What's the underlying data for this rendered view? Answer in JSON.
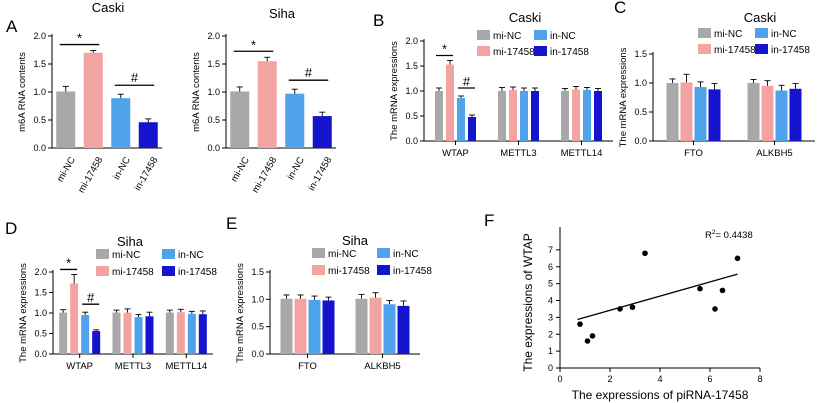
{
  "figure": {
    "series_names": [
      "mi-NC",
      "mi-17458",
      "in-NC",
      "in-17458"
    ]
  },
  "colors": {
    "mi_nc": "#a8a8a8",
    "mi_17458": "#f4a3a3",
    "in_nc": "#4fa3ea",
    "in_17458": "#1414cc"
  },
  "chart_data": [
    {
      "id": "A1",
      "panel_label": "A",
      "type": "bar",
      "title": "Caski",
      "ylabel": "m6A RNA contents",
      "ylim": [
        0,
        2.0
      ],
      "yticks": [
        "0.0",
        "0.5",
        "1.0",
        "1.5",
        "2.0"
      ],
      "categories": [
        "mi-NC",
        "mi-17458",
        "in-NC",
        "in-17458"
      ],
      "values": [
        1.01,
        1.7,
        0.89,
        0.46
      ],
      "errors": [
        0.09,
        0.04,
        0.07,
        0.06
      ],
      "significance": [
        "*",
        "#"
      ]
    },
    {
      "id": "A2",
      "type": "bar",
      "title": "Siha",
      "ylabel": "m6A RNA contents",
      "ylim": [
        0,
        2.0
      ],
      "yticks": [
        "0.0",
        "0.5",
        "1.0",
        "1.5",
        "2.0"
      ],
      "categories": [
        "mi-NC",
        "mi-17458",
        "in-NC",
        "in-17458"
      ],
      "values": [
        1.01,
        1.55,
        0.97,
        0.57
      ],
      "errors": [
        0.08,
        0.07,
        0.08,
        0.07
      ],
      "significance": [
        "*",
        "#"
      ]
    },
    {
      "id": "B",
      "panel_label": "B",
      "type": "bar",
      "title": "Caski",
      "ylabel": "The mRNA expressions",
      "ylim": [
        0,
        2.0
      ],
      "yticks": [
        "0.0",
        "0.5",
        "1.0",
        "1.5",
        "2.0"
      ],
      "categories": [
        "WTAP",
        "METTL3",
        "METTL14"
      ],
      "series": [
        {
          "name": "mi-NC",
          "values": [
            1.0,
            1.0,
            1.0
          ],
          "errors": [
            0.06,
            0.07,
            0.05
          ]
        },
        {
          "name": "mi-17458",
          "values": [
            1.53,
            1.02,
            1.03
          ],
          "errors": [
            0.08,
            0.06,
            0.06
          ]
        },
        {
          "name": "in-NC",
          "values": [
            0.86,
            1.0,
            1.02
          ],
          "errors": [
            0.04,
            0.06,
            0.05
          ]
        },
        {
          "name": "in-17458",
          "values": [
            0.48,
            1.0,
            1.0
          ],
          "errors": [
            0.04,
            0.06,
            0.05
          ]
        }
      ],
      "significance": [
        "*",
        "#"
      ]
    },
    {
      "id": "C",
      "panel_label": "C",
      "type": "bar",
      "title": "Caski",
      "ylabel": "The mRNA expressions",
      "ylim": [
        0,
        1.5
      ],
      "yticks": [
        "0.0",
        "0.5",
        "1.0",
        "1.5"
      ],
      "categories": [
        "FTO",
        "ALKBH5"
      ],
      "series": [
        {
          "name": "mi-NC",
          "values": [
            1.0,
            1.0
          ],
          "errors": [
            0.07,
            0.06
          ]
        },
        {
          "name": "mi-17458",
          "values": [
            1.01,
            0.95
          ],
          "errors": [
            0.14,
            0.09
          ]
        },
        {
          "name": "in-NC",
          "values": [
            0.93,
            0.87
          ],
          "errors": [
            0.09,
            0.09
          ]
        },
        {
          "name": "in-17458",
          "values": [
            0.89,
            0.9
          ],
          "errors": [
            0.1,
            0.09
          ]
        }
      ]
    },
    {
      "id": "D",
      "panel_label": "D",
      "type": "bar",
      "title": "Siha",
      "ylabel": "The mRNA expressions",
      "ylim": [
        0,
        2.0
      ],
      "yticks": [
        "0.0",
        "0.5",
        "1.0",
        "1.5",
        "2.0"
      ],
      "categories": [
        "WTAP",
        "METTL3",
        "METTL14"
      ],
      "series": [
        {
          "name": "mi-NC",
          "values": [
            1.01,
            1.01,
            1.01
          ],
          "errors": [
            0.07,
            0.06,
            0.06
          ]
        },
        {
          "name": "mi-17458",
          "values": [
            1.72,
            1.01,
            1.02
          ],
          "errors": [
            0.22,
            0.09,
            0.07
          ]
        },
        {
          "name": "in-NC",
          "values": [
            0.95,
            0.9,
            0.98
          ],
          "errors": [
            0.07,
            0.06,
            0.06
          ]
        },
        {
          "name": "in-17458",
          "values": [
            0.56,
            0.92,
            0.97
          ],
          "errors": [
            0.03,
            0.1,
            0.08
          ]
        }
      ],
      "significance": [
        "*",
        "#"
      ]
    },
    {
      "id": "E",
      "panel_label": "E",
      "type": "bar",
      "title": "Siha",
      "ylabel": "The mRNA expressions",
      "ylim": [
        0,
        1.5
      ],
      "yticks": [
        "0.0",
        "0.5",
        "1.0",
        "1.5"
      ],
      "categories": [
        "FTO",
        "ALKBH5"
      ],
      "series": [
        {
          "name": "mi-NC",
          "values": [
            1.01,
            1.01
          ],
          "errors": [
            0.07,
            0.08
          ]
        },
        {
          "name": "mi-17458",
          "values": [
            1.01,
            1.03
          ],
          "errors": [
            0.07,
            0.09
          ]
        },
        {
          "name": "in-NC",
          "values": [
            0.99,
            0.91
          ],
          "errors": [
            0.07,
            0.07
          ]
        },
        {
          "name": "in-17458",
          "values": [
            0.98,
            0.88
          ],
          "errors": [
            0.06,
            0.09
          ]
        }
      ]
    },
    {
      "id": "F",
      "panel_label": "F",
      "type": "scatter",
      "xlabel": "The expressions of piRNA-17458",
      "ylabel": "The expressions of WTAP",
      "xlim": [
        0,
        8
      ],
      "ylim": [
        0,
        8
      ],
      "xticks": [
        "0",
        "2",
        "4",
        "6",
        "8"
      ],
      "yticks": [
        "0",
        "1",
        "2",
        "3",
        "4",
        "5",
        "6",
        "7"
      ],
      "annotation_prefix": "R",
      "annotation_sup": "2",
      "annotation_value": "= 0.4438",
      "x": [
        0.8,
        1.1,
        1.3,
        2.4,
        2.9,
        3.4,
        5.6,
        6.2,
        6.5,
        7.1
      ],
      "y": [
        2.6,
        1.6,
        1.9,
        3.5,
        3.6,
        6.8,
        4.7,
        3.5,
        4.6,
        6.5
      ],
      "fit": {
        "slope": 0.42,
        "intercept": 2.58,
        "x0": 0.7,
        "x1": 7.1
      }
    }
  ]
}
